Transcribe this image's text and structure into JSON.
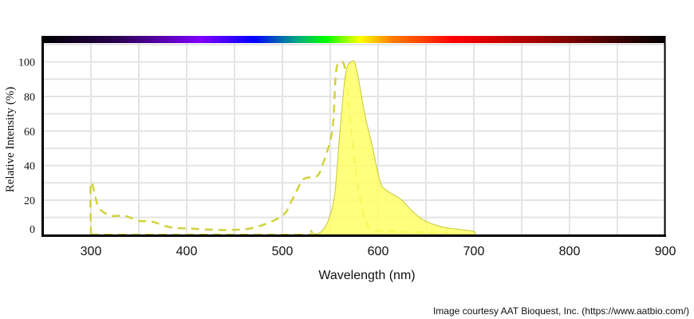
{
  "chart_data": {
    "type": "area",
    "title": "",
    "xlabel": "Wavelength (nm)",
    "ylabel": "Relative Intensity (%)",
    "xlim": [
      250,
      900
    ],
    "ylim": [
      0,
      110
    ],
    "xticks": [
      300,
      400,
      500,
      600,
      700,
      800,
      900
    ],
    "yticks": [
      0,
      20,
      40,
      60,
      80,
      100
    ],
    "grid": true,
    "spectrum_bar": true,
    "series": [
      {
        "style": "dashed",
        "color": "#d2d23c",
        "x": [
          300,
          300,
          308,
          321,
          335,
          350,
          363,
          383,
          405,
          432,
          449,
          472,
          500,
          510,
          522,
          535,
          541,
          552,
          556,
          561,
          566,
          572,
          580,
          588,
          602,
          674
        ],
        "y": [
          0,
          30,
          16,
          11,
          11,
          8,
          7.7,
          4.3,
          3.5,
          2.8,
          2.8,
          4.3,
          11,
          20,
          32,
          33.5,
          39,
          60,
          94,
          100,
          94,
          59,
          25,
          6.6,
          2.3,
          1.2
        ]
      },
      {
        "style": "filled",
        "color": "#ffff66",
        "stroke": "#c8c832",
        "x": [
          530,
          530,
          533,
          541,
          549,
          555,
          560,
          566,
          572,
          577,
          586,
          594,
          602,
          608,
          624,
          635,
          649,
          669,
          699,
          700
        ],
        "y": [
          0,
          2.8,
          0.5,
          2,
          9.7,
          25,
          59,
          93,
          100,
          97,
          70,
          51,
          31,
          26,
          20.4,
          14,
          8,
          4.3,
          2,
          0
        ]
      }
    ]
  },
  "credit": "Image courtesy AAT Bioquest, Inc. (https://www.aatbio.com/)"
}
